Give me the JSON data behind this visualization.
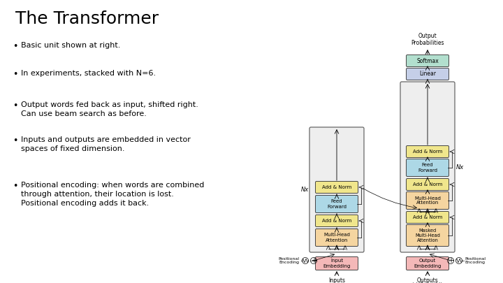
{
  "title": "The Transformer",
  "background_color": "#ffffff",
  "text_color": "#000000",
  "bullet_points": [
    "Basic unit shown at right.",
    "In experiments, stacked with N=6.",
    "Output words fed back as input, shifted right.\nCan use beam search as before.",
    "Inputs and outputs are embedded in vector\nspaces of fixed dimension.",
    "Positional encoding: when words are combined\nthrough attention, their location is lost.\nPositional encoding adds it back."
  ],
  "title_fontsize": 18,
  "bullet_fontsize": 8,
  "colors": {
    "softmax": "#b2dfce",
    "linear": "#c5cfe8",
    "add_norm": "#f0e68c",
    "feed_forward": "#add8e6",
    "multi_head": "#f5d5a0",
    "masked_multi_head": "#f5d5a0",
    "embedding": "#f4b8b8",
    "box_bg": "#eeeeee"
  }
}
